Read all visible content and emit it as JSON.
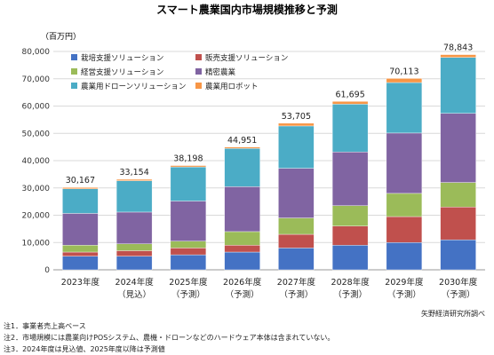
{
  "chart_data": {
    "type": "bar",
    "stacked": true,
    "title": "スマート農業国内市場規模推移と予測",
    "unit_label": "（百万円）",
    "ylim": [
      0,
      80000
    ],
    "yticks": [
      0,
      10000,
      20000,
      30000,
      40000,
      50000,
      60000,
      70000,
      80000
    ],
    "ytick_labels": [
      "0",
      "10,000",
      "20,000",
      "30,000",
      "40,000",
      "50,000",
      "60,000",
      "70,000",
      "80,000"
    ],
    "grid": true,
    "legend_placement": "top-left",
    "categories": [
      "2023年度",
      "2024年度",
      "2025年度",
      "2026年度",
      "2027年度",
      "2028年度",
      "2029年度",
      "2030年度"
    ],
    "category_sublabels": [
      "",
      "（見込）",
      "（予測）",
      "（予測）",
      "（予測）",
      "（予測）",
      "（予測）",
      "（予測）"
    ],
    "totals": [
      30167,
      33154,
      38198,
      44951,
      53705,
      61695,
      70113,
      78843
    ],
    "total_labels": [
      "30,167",
      "33,154",
      "38,198",
      "44,951",
      "53,705",
      "61,695",
      "70,113",
      "78,843"
    ],
    "series": [
      {
        "name": "栽培支援ソリューション",
        "color": "#4472c4",
        "values": [
          5000,
          5000,
          5500,
          6500,
          8000,
          9000,
          10000,
          11000
        ]
      },
      {
        "name": "販売支援ソリューション",
        "color": "#c0504d",
        "values": [
          1500,
          2000,
          2500,
          2500,
          5000,
          7000,
          9500,
          12000
        ]
      },
      {
        "name": "経営支援ソリューション",
        "color": "#9bbb59",
        "values": [
          2500,
          2500,
          2500,
          5000,
          6000,
          7500,
          8500,
          9000
        ]
      },
      {
        "name": "精密農業",
        "color": "#8064a2",
        "values": [
          11667,
          11654,
          14698,
          16451,
          18205,
          19695,
          22113,
          25343
        ]
      },
      {
        "name": "農業用ドローンソリューション",
        "color": "#4bacc6",
        "values": [
          9000,
          11500,
          12500,
          14000,
          15500,
          17500,
          18500,
          20500
        ]
      },
      {
        "name": "農業用ロボット",
        "color": "#f79646",
        "values": [
          500,
          500,
          500,
          500,
          1000,
          1000,
          1500,
          1000
        ]
      }
    ]
  },
  "source": "矢野経済研究所調べ",
  "notes": [
    "注1．事業者売上高ベース",
    "注2．市場規模には農業向けPOSシステム、農機・ドローンなどのハードウェア本体は含まれていない。",
    "注3．2024年度は見込値、2025年度以降は予測値"
  ]
}
